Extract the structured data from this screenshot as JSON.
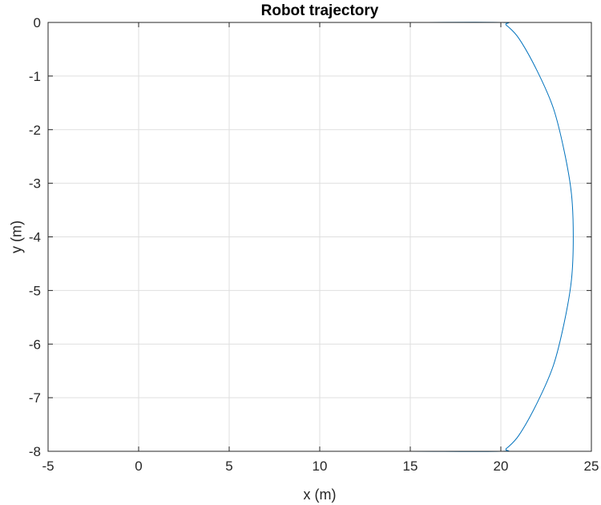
{
  "chart_data": {
    "type": "line",
    "title": "Robot trajectory",
    "xlabel": "x (m)",
    "ylabel": "y (m)",
    "xlim": [
      -5,
      25
    ],
    "ylim": [
      -8,
      0
    ],
    "xticks": [
      -5,
      0,
      5,
      10,
      15,
      20,
      25
    ],
    "yticks": [
      0,
      -1,
      -2,
      -3,
      -4,
      -5,
      -6,
      -7,
      -8
    ],
    "xtick_labels": [
      "-5",
      "0",
      "5",
      "10",
      "15",
      "20",
      "25"
    ],
    "ytick_labels": [
      "0",
      "-1",
      "-2",
      "-3",
      "-4",
      "-5",
      "-6",
      "-7",
      "-8"
    ],
    "grid": true,
    "box": true,
    "series": [
      {
        "color": "#0072BD",
        "x": [
          0,
          5,
          10,
          15,
          20,
          20.3,
          21.0,
          22.0,
          22.9,
          23.5,
          23.9,
          24.0,
          23.9,
          23.5,
          22.9,
          22.0,
          21.0,
          20.3,
          20,
          15,
          10,
          5,
          0
        ],
        "y": [
          0,
          0,
          0,
          0,
          0,
          -0.05,
          -0.3,
          -0.9,
          -1.6,
          -2.4,
          -3.2,
          -4.0,
          -4.8,
          -5.6,
          -6.4,
          -7.1,
          -7.7,
          -7.95,
          -8,
          -8,
          -8,
          -8,
          -8
        ]
      }
    ]
  }
}
